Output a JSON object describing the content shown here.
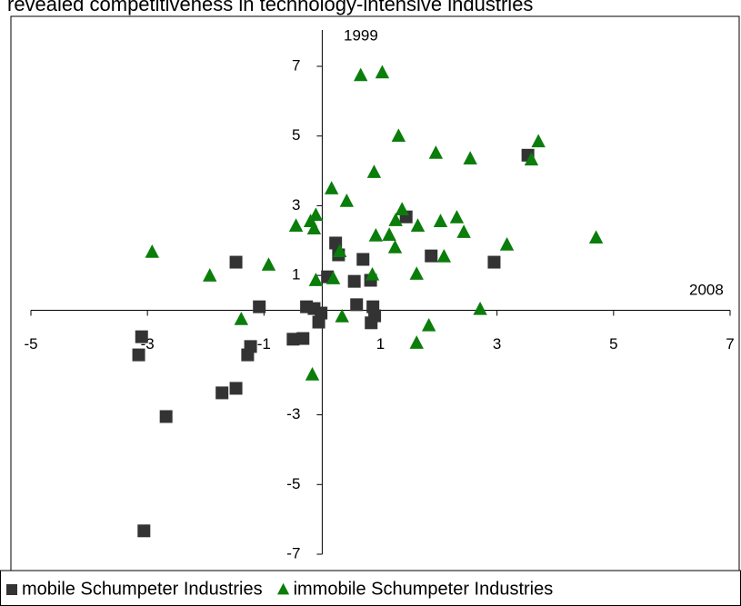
{
  "chart_data": {
    "type": "scatter",
    "title": "revealed competitiveness in technology-intensive industries",
    "x_label": "2008",
    "y_label": "1999",
    "xlim": [
      -5,
      7
    ],
    "ylim": [
      -7,
      7
    ],
    "xticks": [
      -5,
      -3,
      -1,
      1,
      3,
      5,
      7
    ],
    "yticks": [
      -7,
      -5,
      -3,
      1,
      3,
      5,
      7
    ],
    "series": [
      {
        "name": "mobile Schumpeter Industries",
        "color": "#333333",
        "marker": "square",
        "x": [
          -3.1,
          -3.15,
          -2.68,
          -3.06,
          -1.48,
          -1.72,
          -1.48,
          -1.28,
          -1.23,
          -1.08,
          -0.5,
          -0.33,
          -0.27,
          -0.14,
          -0.02,
          -0.06,
          0.09,
          0.23,
          0.28,
          0.55,
          0.7,
          0.83,
          0.59,
          0.87,
          0.9,
          0.84,
          1.44,
          1.87,
          2.95,
          3.53
        ],
        "values": [
          -0.76,
          -1.28,
          -3.05,
          -6.33,
          1.38,
          -2.37,
          -2.24,
          -1.28,
          -1.04,
          0.1,
          -0.83,
          -0.81,
          0.1,
          0.05,
          -0.08,
          -0.34,
          0.96,
          1.93,
          1.59,
          0.83,
          1.46,
          0.86,
          0.16,
          0.1,
          -0.16,
          -0.36,
          2.68,
          1.56,
          1.38,
          4.45
        ]
      },
      {
        "name": "immobile Schumpeter Industries",
        "color": "#0a7d0a",
        "marker": "triangle",
        "x": [
          -2.92,
          -1.93,
          -1.39,
          -0.92,
          -0.45,
          -0.2,
          -0.11,
          -0.14,
          -0.17,
          0.16,
          0.19,
          -0.11,
          0.3,
          0.34,
          0.42,
          0.66,
          1.03,
          0.89,
          0.92,
          0.86,
          1.15,
          1.25,
          1.26,
          1.37,
          1.31,
          1.64,
          1.62,
          1.62,
          1.83,
          1.95,
          2.03,
          2.09,
          2.31,
          2.43,
          2.54,
          2.71,
          3.17,
          3.59,
          3.71,
          4.7
        ],
        "values": [
          1.67,
          0.99,
          -0.26,
          1.3,
          2.42,
          2.55,
          2.73,
          2.34,
          -1.85,
          3.49,
          0.91,
          0.86,
          1.69,
          -0.18,
          3.13,
          6.74,
          6.82,
          3.96,
          2.14,
          1.02,
          2.16,
          1.8,
          2.58,
          2.89,
          5.0,
          2.42,
          1.04,
          -0.94,
          -0.44,
          4.51,
          2.55,
          1.54,
          2.66,
          2.24,
          4.35,
          0.03,
          1.88,
          4.32,
          4.84,
          2.08
        ]
      }
    ]
  }
}
